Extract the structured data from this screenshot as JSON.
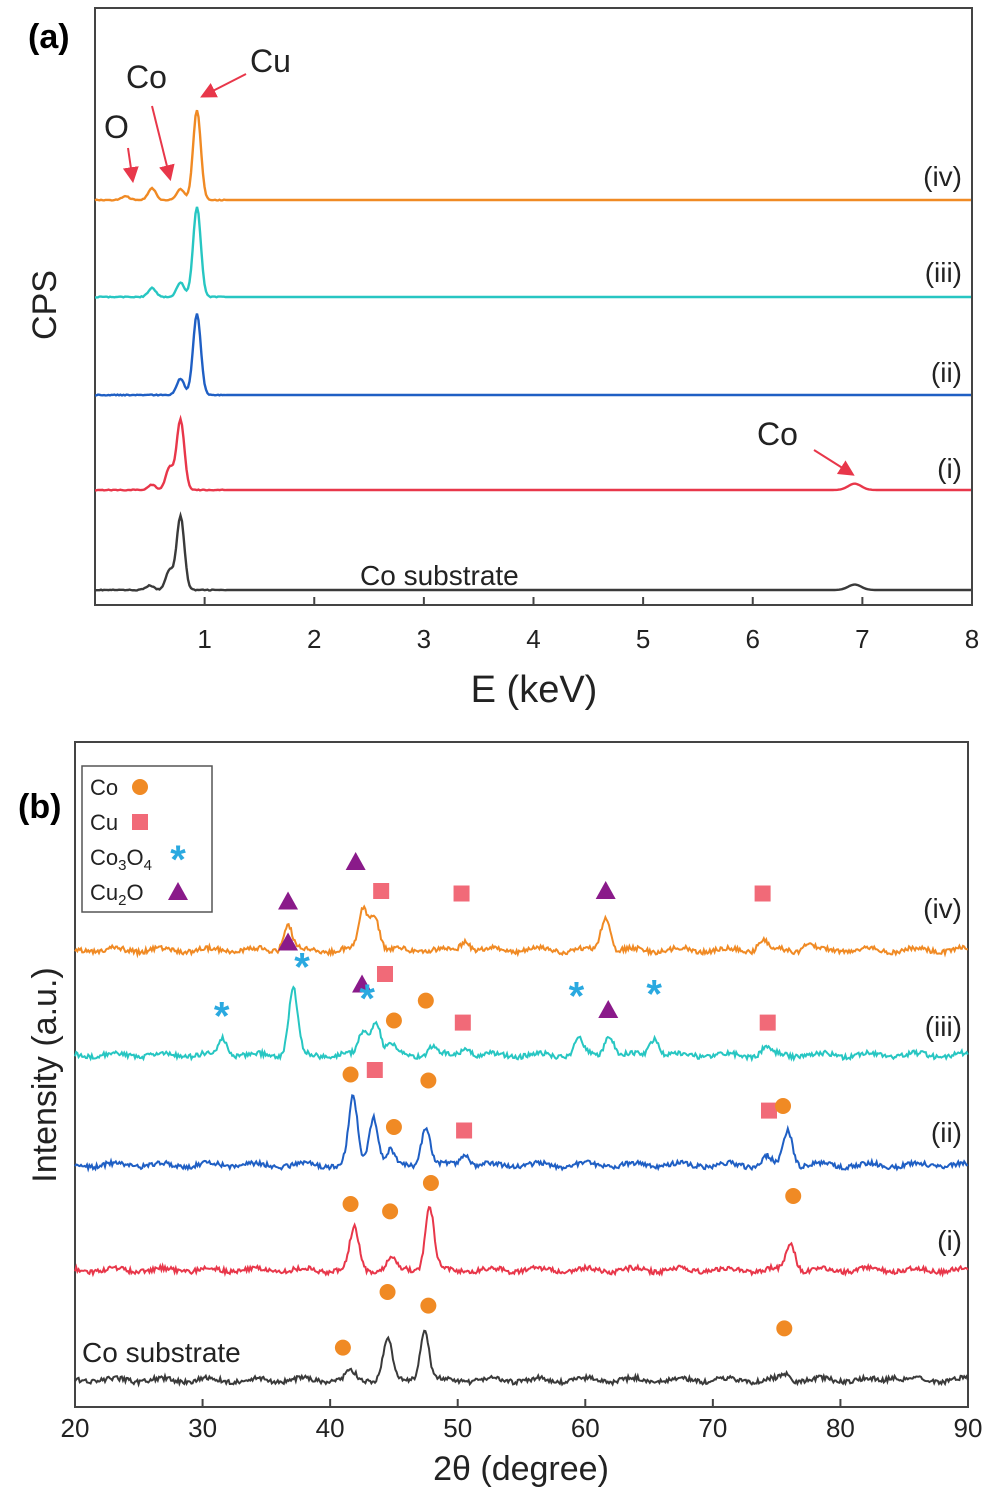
{
  "chart_data": [
    {
      "panel": "(a)",
      "type": "line",
      "xlabel": "E (keV)",
      "ylabel": "CPS",
      "xlim": [
        0,
        8
      ],
      "xticks": [
        "1",
        "2",
        "3",
        "4",
        "5",
        "6",
        "7",
        "8"
      ],
      "y_offset_stacked": true,
      "grid": false,
      "series": [
        {
          "name": "Co substrate",
          "color": "#3a3a3a",
          "peaks": [
            {
              "x": 0.5,
              "h": 0.05
            },
            {
              "x": 0.68,
              "h": 0.22
            },
            {
              "x": 0.78,
              "h": 0.82
            },
            {
              "x": 6.93,
              "h": 0.06
            }
          ]
        },
        {
          "name": "(i)",
          "color": "#e8374a",
          "peaks": [
            {
              "x": 0.52,
              "h": 0.06
            },
            {
              "x": 0.68,
              "h": 0.25
            },
            {
              "x": 0.78,
              "h": 0.78
            },
            {
              "x": 6.93,
              "h": 0.07
            }
          ]
        },
        {
          "name": "(ii)",
          "color": "#1f5fc4",
          "peaks": [
            {
              "x": 0.78,
              "h": 0.18
            },
            {
              "x": 0.93,
              "h": 0.9
            }
          ]
        },
        {
          "name": "(iii)",
          "color": "#27c6c2",
          "peaks": [
            {
              "x": 0.52,
              "h": 0.1
            },
            {
              "x": 0.78,
              "h": 0.16
            },
            {
              "x": 0.93,
              "h": 1.0
            }
          ]
        },
        {
          "name": "(iv)",
          "color": "#f08a24",
          "peaks": [
            {
              "x": 0.28,
              "h": 0.04
            },
            {
              "x": 0.52,
              "h": 0.13
            },
            {
              "x": 0.78,
              "h": 0.12
            },
            {
              "x": 0.93,
              "h": 1.0
            }
          ]
        }
      ],
      "annotations": [
        {
          "text": "O",
          "target_x": 0.38
        },
        {
          "text": "Co",
          "target_x": 0.72
        },
        {
          "text": "Cu",
          "target_x": 0.93
        },
        {
          "text": "Co",
          "target_x": 6.93
        }
      ]
    },
    {
      "panel": "(b)",
      "type": "line",
      "xlabel": "2θ (degree)",
      "ylabel": "Intensity (a.u.)",
      "xlim": [
        20,
        90
      ],
      "xticks": [
        "20",
        "30",
        "40",
        "50",
        "60",
        "70",
        "80",
        "90"
      ],
      "y_offset_stacked": true,
      "grid": false,
      "legend": {
        "position": "top-left",
        "entries": [
          {
            "label": "Co",
            "marker": "circle",
            "color": "#f08a24"
          },
          {
            "label": "Cu",
            "marker": "square",
            "color": "#f16a78"
          },
          {
            "label": "Co3O4",
            "label_html": "Co<sub>3</sub>O<sub>4</sub>",
            "marker": "star",
            "color": "#2aa9e0"
          },
          {
            "label": "Cu2O",
            "label_html": "Cu<sub>2</sub>O",
            "marker": "triangle",
            "color": "#8a1a8a"
          }
        ]
      },
      "series": [
        {
          "name": "Co substrate",
          "color": "#3a3a3a",
          "peaks": [
            {
              "x": 41.6,
              "h": 0.12
            },
            {
              "x": 44.5,
              "h": 0.6
            },
            {
              "x": 47.4,
              "h": 0.72
            },
            {
              "x": 75.8,
              "h": 0.08
            },
            {
              "x": 84.1,
              "h": 0.06
            }
          ],
          "markers": [
            {
              "x": 41.0,
              "m": "circle"
            },
            {
              "x": 44.5,
              "m": "circle"
            },
            {
              "x": 47.7,
              "m": "circle"
            },
            {
              "x": 75.6,
              "m": "circle"
            }
          ]
        },
        {
          "name": "(i)",
          "color": "#e8374a",
          "peaks": [
            {
              "x": 41.9,
              "h": 0.6
            },
            {
              "x": 44.8,
              "h": 0.18
            },
            {
              "x": 47.8,
              "h": 0.9
            },
            {
              "x": 76.1,
              "h": 0.4
            }
          ],
          "markers": [
            {
              "x": 41.6,
              "m": "circle"
            },
            {
              "x": 44.7,
              "m": "circle"
            },
            {
              "x": 47.9,
              "m": "circle"
            },
            {
              "x": 76.3,
              "m": "circle"
            }
          ]
        },
        {
          "name": "(ii)",
          "color": "#1f5fc4",
          "peaks": [
            {
              "x": 41.8,
              "h": 0.95
            },
            {
              "x": 43.4,
              "h": 0.7
            },
            {
              "x": 44.7,
              "h": 0.2
            },
            {
              "x": 47.5,
              "h": 0.55
            },
            {
              "x": 50.6,
              "h": 0.15
            },
            {
              "x": 74.2,
              "h": 0.12
            },
            {
              "x": 75.9,
              "h": 0.5
            }
          ],
          "markers": [
            {
              "x": 41.6,
              "m": "circle"
            },
            {
              "x": 43.5,
              "m": "square"
            },
            {
              "x": 45.0,
              "m": "circle"
            },
            {
              "x": 47.7,
              "m": "circle"
            },
            {
              "x": 50.5,
              "m": "square"
            },
            {
              "x": 74.4,
              "m": "square"
            },
            {
              "x": 75.5,
              "m": "circle"
            }
          ]
        },
        {
          "name": "(iii)",
          "color": "#27c6c2",
          "peaks": [
            {
              "x": 31.6,
              "h": 0.25
            },
            {
              "x": 37.1,
              "h": 0.95
            },
            {
              "x": 42.6,
              "h": 0.35
            },
            {
              "x": 43.6,
              "h": 0.5
            },
            {
              "x": 44.8,
              "h": 0.15
            },
            {
              "x": 48.0,
              "h": 0.12
            },
            {
              "x": 50.7,
              "h": 0.12
            },
            {
              "x": 59.5,
              "h": 0.22
            },
            {
              "x": 61.9,
              "h": 0.3
            },
            {
              "x": 65.4,
              "h": 0.25
            },
            {
              "x": 74.2,
              "h": 0.12
            }
          ],
          "markers": [
            {
              "x": 31.5,
              "m": "star"
            },
            {
              "x": 36.7,
              "m": "triangle"
            },
            {
              "x": 37.8,
              "m": "star"
            },
            {
              "x": 42.5,
              "m": "triangle"
            },
            {
              "x": 42.9,
              "m": "star"
            },
            {
              "x": 44.3,
              "m": "square"
            },
            {
              "x": 45.0,
              "m": "circle"
            },
            {
              "x": 47.5,
              "m": "circle"
            },
            {
              "x": 50.4,
              "m": "square"
            },
            {
              "x": 59.3,
              "m": "star"
            },
            {
              "x": 61.8,
              "m": "triangle"
            },
            {
              "x": 65.4,
              "m": "star"
            },
            {
              "x": 74.3,
              "m": "square"
            }
          ]
        },
        {
          "name": "(iv)",
          "color": "#f08a24",
          "peaks": [
            {
              "x": 36.7,
              "h": 0.35
            },
            {
              "x": 42.6,
              "h": 0.6
            },
            {
              "x": 43.5,
              "h": 0.5
            },
            {
              "x": 50.6,
              "h": 0.15
            },
            {
              "x": 61.6,
              "h": 0.5
            },
            {
              "x": 73.9,
              "h": 0.15
            },
            {
              "x": 77.5,
              "h": 0.12
            }
          ],
          "markers": [
            {
              "x": 36.7,
              "m": "triangle"
            },
            {
              "x": 42.0,
              "m": "triangle"
            },
            {
              "x": 44.0,
              "m": "square"
            },
            {
              "x": 50.3,
              "m": "square"
            },
            {
              "x": 61.6,
              "m": "triangle"
            },
            {
              "x": 73.9,
              "m": "square"
            }
          ]
        }
      ]
    }
  ]
}
